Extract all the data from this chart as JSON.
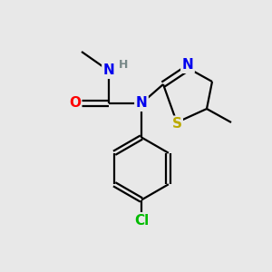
{
  "bg_color": "#e8e8e8",
  "atom_colors": {
    "C": "#000000",
    "N": "#0000ee",
    "O": "#ff0000",
    "S": "#bbaa00",
    "Cl": "#00bb00",
    "H": "#778888"
  },
  "figsize": [
    3.0,
    3.0
  ],
  "dpi": 100,
  "xlim": [
    0,
    10
  ],
  "ylim": [
    0,
    10
  ],
  "lw": 1.6,
  "fontsize": 11
}
